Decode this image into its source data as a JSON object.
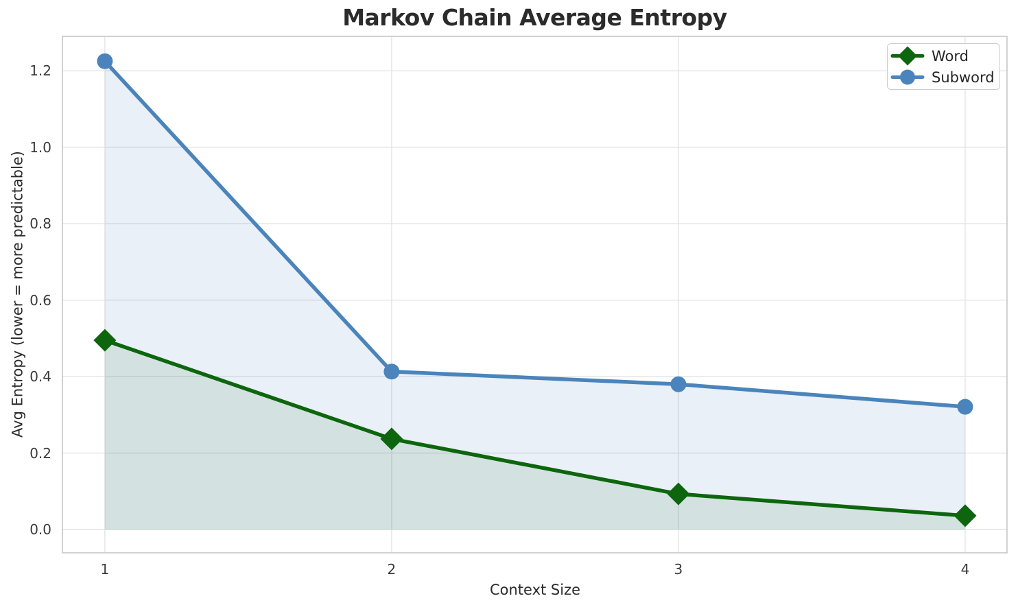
{
  "chart_data": {
    "type": "line",
    "title": "Markov Chain Average Entropy",
    "xlabel": "Context Size",
    "ylabel": "Avg Entropy (lower = more predictable)",
    "x": [
      1,
      2,
      3,
      4
    ],
    "series": [
      {
        "name": "Word",
        "values": [
          0.495,
          0.237,
          0.093,
          0.036
        ],
        "color": "#0d660d",
        "marker": "diamond",
        "fill_alpha": 0.1,
        "line_width": 5.5
      },
      {
        "name": "Subword",
        "values": [
          1.225,
          0.413,
          0.38,
          0.321
        ],
        "color": "#4b84bc",
        "marker": "circle",
        "fill_alpha": 0.12,
        "line_width": 5.5
      }
    ],
    "xticks": [
      "1",
      "2",
      "3",
      "4"
    ],
    "yticks": [
      "0.0",
      "0.2",
      "0.4",
      "0.6",
      "0.8",
      "1.0",
      "1.2"
    ],
    "xlim": [
      0.852,
      4.146
    ],
    "ylim": [
      -0.061,
      1.29
    ],
    "grid": true,
    "area_baseline": 0,
    "legend_position": "upper right"
  },
  "style": {
    "grid_color": "#e4e4e4",
    "spine_color": "#c6c6c6",
    "text_color": "#2b2b2b",
    "background": "#ffffff"
  }
}
